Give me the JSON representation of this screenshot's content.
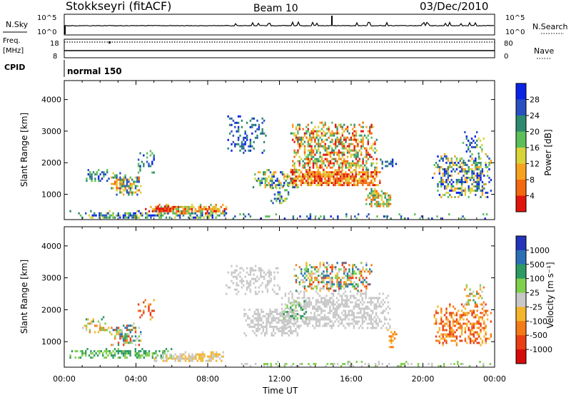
{
  "header": {
    "station": "Stokkseyri (fitACF)",
    "beam": "Beam 10",
    "date": "03/Dec/2010"
  },
  "side_labels": {
    "nsky": "N.Sky",
    "nsearch": "N.Search",
    "freq": "Freq.",
    "freq_unit": "[MHz]",
    "nave": "Nave",
    "cpid": "CPID"
  },
  "side_ticks": {
    "noise_top": "10^5",
    "noise_bottom": "10^0",
    "freq_top": "18",
    "freq_bottom": "8",
    "nave_top": "80",
    "nave_bottom": "0"
  },
  "cpid_mode": "normal 150",
  "chart_data": [
    {
      "type": "heatmap",
      "panel": "power",
      "ylabel": "Slant Range [km]",
      "ylim": [
        200,
        4600
      ],
      "yticks": [
        "1000",
        "2000",
        "3000",
        "4000"
      ],
      "colorbar": {
        "label": "Power [dB]",
        "ticks": [
          "4",
          "8",
          "12",
          "16",
          "20",
          "24",
          "28"
        ],
        "colors": [
          "#0a24e6",
          "#2850c0",
          "#2e8a6e",
          "#5cbf5a",
          "#d9d33a",
          "#f7a21e",
          "#f4680f",
          "#e2150d"
        ]
      }
    },
    {
      "type": "heatmap",
      "panel": "velocity",
      "ylabel": "Slant Range [km]",
      "ylim": [
        200,
        4600
      ],
      "yticks": [
        "1000",
        "2000",
        "3000",
        "4000"
      ],
      "xlabel": "Time UT",
      "xticks": [
        "00:00",
        "04:00",
        "08:00",
        "12:00",
        "16:00",
        "20:00",
        "00:00"
      ],
      "colorbar": {
        "label": "Velocity [m s⁻¹]",
        "ticks": [
          "1000",
          "500",
          "100",
          "25",
          "-25",
          "-100",
          "-500",
          "-1000"
        ],
        "colors": [
          "#2433b8",
          "#2b6fb5",
          "#2e9a63",
          "#7fd04b",
          "#c8c8c8",
          "#f5b52a",
          "#f47b18",
          "#ea3e14",
          "#d50a0a"
        ]
      }
    }
  ]
}
